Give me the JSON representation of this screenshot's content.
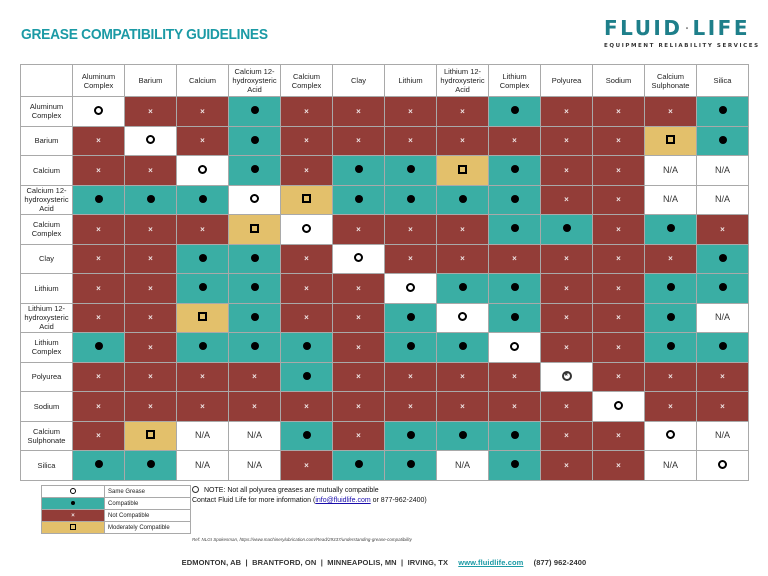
{
  "header": {
    "title": "GREASE COMPATIBILITY GUIDELINES",
    "logo": {
      "left": "FLUID",
      "right": "LIFE",
      "tagline": "EQUIPMENT RELIABILITY SERVICES",
      "icon": "oil-drop-icon",
      "color": "#1e7f8a"
    }
  },
  "colors": {
    "compatible": "#3aaea4",
    "not_compatible": "#933d38",
    "moderately_compatible": "#e3c06b",
    "same_grease": "#ffffff",
    "title": "#1b9aa5"
  },
  "matrix": {
    "columns": [
      "Aluminum Complex",
      "Barium",
      "Calcium",
      "Calcium 12-hydroxysteric Acid",
      "Calcium Complex",
      "Clay",
      "Lithium",
      "Lithium 12-hydroxysteric Acid",
      "Lithium Complex",
      "Polyurea",
      "Sodium",
      "Calcium Sulphonate",
      "Silica"
    ],
    "rows": [
      {
        "label": "Aluminum Complex",
        "cells": [
          "S",
          "X",
          "X",
          "C",
          "X",
          "X",
          "X",
          "X",
          "C",
          "X",
          "X",
          "X",
          "C"
        ]
      },
      {
        "label": "Barium",
        "cells": [
          "X",
          "S",
          "X",
          "C",
          "X",
          "X",
          "X",
          "X",
          "X",
          "X",
          "X",
          "M",
          "C"
        ]
      },
      {
        "label": "Calcium",
        "cells": [
          "X",
          "X",
          "S",
          "C",
          "X",
          "C",
          "C",
          "M",
          "C",
          "X",
          "X",
          "NA",
          "NA"
        ]
      },
      {
        "label": "Calcium 12-hydroxysteric Acid",
        "cells": [
          "C",
          "C",
          "C",
          "S",
          "M",
          "C",
          "C",
          "C",
          "C",
          "X",
          "X",
          "NA",
          "NA"
        ]
      },
      {
        "label": "Calcium Complex",
        "cells": [
          "X",
          "X",
          "X",
          "M",
          "S",
          "X",
          "X",
          "X",
          "C",
          "C",
          "X",
          "C",
          "X"
        ]
      },
      {
        "label": "Clay",
        "cells": [
          "X",
          "X",
          "C",
          "C",
          "X",
          "S",
          "X",
          "X",
          "X",
          "X",
          "X",
          "X",
          "C"
        ]
      },
      {
        "label": "Lithium",
        "cells": [
          "X",
          "X",
          "C",
          "C",
          "X",
          "X",
          "S",
          "C",
          "C",
          "X",
          "X",
          "C",
          "C"
        ]
      },
      {
        "label": "Lithium 12-hydroxysteric Acid",
        "cells": [
          "X",
          "X",
          "M",
          "C",
          "X",
          "X",
          "C",
          "S",
          "C",
          "X",
          "X",
          "C",
          "NA"
        ]
      },
      {
        "label": "Lithium Complex",
        "cells": [
          "C",
          "X",
          "C",
          "C",
          "C",
          "X",
          "C",
          "C",
          "S",
          "X",
          "X",
          "C",
          "C"
        ]
      },
      {
        "label": "Polyurea",
        "cells": [
          "X",
          "X",
          "X",
          "X",
          "C",
          "X",
          "X",
          "X",
          "X",
          "P",
          "X",
          "X",
          "X"
        ]
      },
      {
        "label": "Sodium",
        "cells": [
          "X",
          "X",
          "X",
          "X",
          "X",
          "X",
          "X",
          "X",
          "X",
          "X",
          "S",
          "X",
          "X"
        ]
      },
      {
        "label": "Calcium Sulphonate",
        "cells": [
          "X",
          "M",
          "NA",
          "NA",
          "C",
          "X",
          "C",
          "C",
          "C",
          "X",
          "X",
          "S",
          "NA"
        ]
      },
      {
        "label": "Silica",
        "cells": [
          "C",
          "C",
          "NA",
          "NA",
          "X",
          "C",
          "C",
          "NA",
          "C",
          "X",
          "X",
          "NA",
          "S"
        ]
      }
    ],
    "na_text": "N/A",
    "not_compatible_glyph": "×"
  },
  "legend": {
    "items": [
      {
        "code": "S",
        "label": "Same Grease",
        "icon": "open-circle-icon"
      },
      {
        "code": "C",
        "label": "Compatible",
        "icon": "filled-dot-icon"
      },
      {
        "code": "X",
        "label": "Not Compatible",
        "icon": "x-mark-icon"
      },
      {
        "code": "M",
        "label": "Moderately Compatible",
        "icon": "open-square-icon"
      }
    ]
  },
  "note": {
    "line1": "NOTE: Not all polyurea greases are mutually compatible",
    "line2_prefix": "Contact Fluid Life for more information (",
    "email": "info@fluidlife.com",
    "line2_suffix": " or 877-962-2400)",
    "icon": "star-circle-icon"
  },
  "reference": "Ref: NLGI Spokesman, https://www.machinerylubrication.com/Read/29337/understanding-grease-compatibility",
  "footer": {
    "locations": "EDMONTON, AB  |  BRANTFORD, ON  |  MINNEAPOLIS, MN  |  IRVING, TX",
    "website": "www.fluidlife.com",
    "phone": "(877) 962-2400"
  }
}
